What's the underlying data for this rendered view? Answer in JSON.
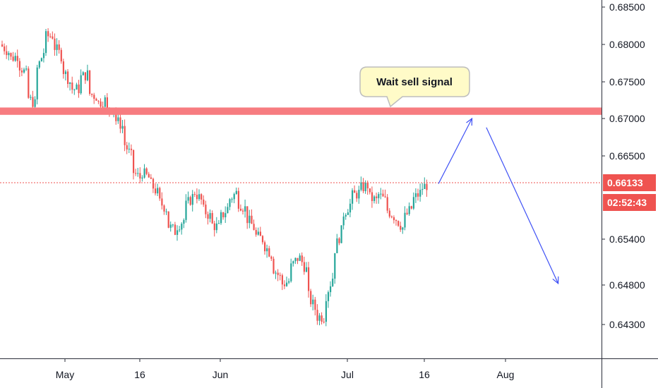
{
  "chart_data": {
    "type": "candlestick",
    "x_ticks": [
      "May",
      "16",
      "Jun",
      "Jul",
      "16",
      "Aug"
    ],
    "y_ticks": [
      "0.68500",
      "0.68000",
      "0.67500",
      "0.67000",
      "0.66500",
      "0.65400",
      "0.64800",
      "0.64300"
    ],
    "y_tick_values": [
      0.685,
      0.68,
      0.675,
      0.67,
      0.665,
      0.654,
      0.648,
      0.643
    ],
    "current_price_label": "0.66133",
    "current_price": 0.66133,
    "countdown_label": "02:52:43",
    "annotation": "Wait sell signal",
    "resistance_zone": [
      0.6705,
      0.6715
    ],
    "forecast_path": [
      {
        "date": "2020-07-18",
        "price": 0.6612
      },
      {
        "date": "2020-07-25",
        "price": 0.67
      },
      {
        "date": "2020-07-28",
        "price": 0.6688
      },
      {
        "date": "2020-08-12",
        "price": 0.6482
      }
    ],
    "price_path": [
      [
        0.68,
        0.679
      ],
      [
        0.678,
        0.6785
      ],
      [
        0.6775,
        0.676
      ],
      [
        0.673,
        0.672
      ],
      [
        0.676,
        0.679
      ],
      [
        0.681,
        0.6812
      ],
      [
        0.68,
        0.6785
      ],
      [
        0.677,
        0.675
      ],
      [
        0.674,
        0.674
      ],
      [
        0.6755,
        0.676
      ],
      [
        0.6735,
        0.673
      ],
      [
        0.672,
        0.6725
      ],
      [
        0.671,
        0.6715
      ],
      [
        0.67,
        0.669
      ],
      [
        0.667,
        0.665
      ],
      [
        0.663,
        0.662
      ],
      [
        0.663,
        0.662
      ],
      [
        0.6615,
        0.66
      ],
      [
        0.659,
        0.658
      ],
      [
        0.656,
        0.655
      ],
      [
        0.6555,
        0.6565
      ],
      [
        0.658,
        0.6595
      ],
      [
        0.6605,
        0.659
      ],
      [
        0.658,
        0.657
      ],
      [
        0.656,
        0.6555
      ],
      [
        0.6565,
        0.658
      ],
      [
        0.659,
        0.66
      ],
      [
        0.659,
        0.658
      ],
      [
        0.657,
        0.6555
      ],
      [
        0.6545,
        0.654
      ],
      [
        0.6535,
        0.652
      ],
      [
        0.6505,
        0.649
      ],
      [
        0.648,
        0.6485
      ],
      [
        0.65,
        0.6515
      ],
      [
        0.652,
        0.65
      ],
      [
        0.647,
        0.645
      ],
      [
        0.644,
        0.644
      ],
      [
        0.646,
        0.649
      ],
      [
        0.652,
        0.655
      ],
      [
        0.657,
        0.6585
      ],
      [
        0.6595,
        0.66
      ],
      [
        0.6605,
        0.661
      ],
      [
        0.6595,
        0.659
      ],
      [
        0.66,
        0.659
      ],
      [
        0.658,
        0.657
      ],
      [
        0.657,
        0.6555
      ],
      [
        0.6565,
        0.658
      ],
      [
        0.659,
        0.66
      ],
      [
        0.6605,
        0.6612
      ],
      [
        0.6615,
        0.6613
      ]
    ]
  }
}
